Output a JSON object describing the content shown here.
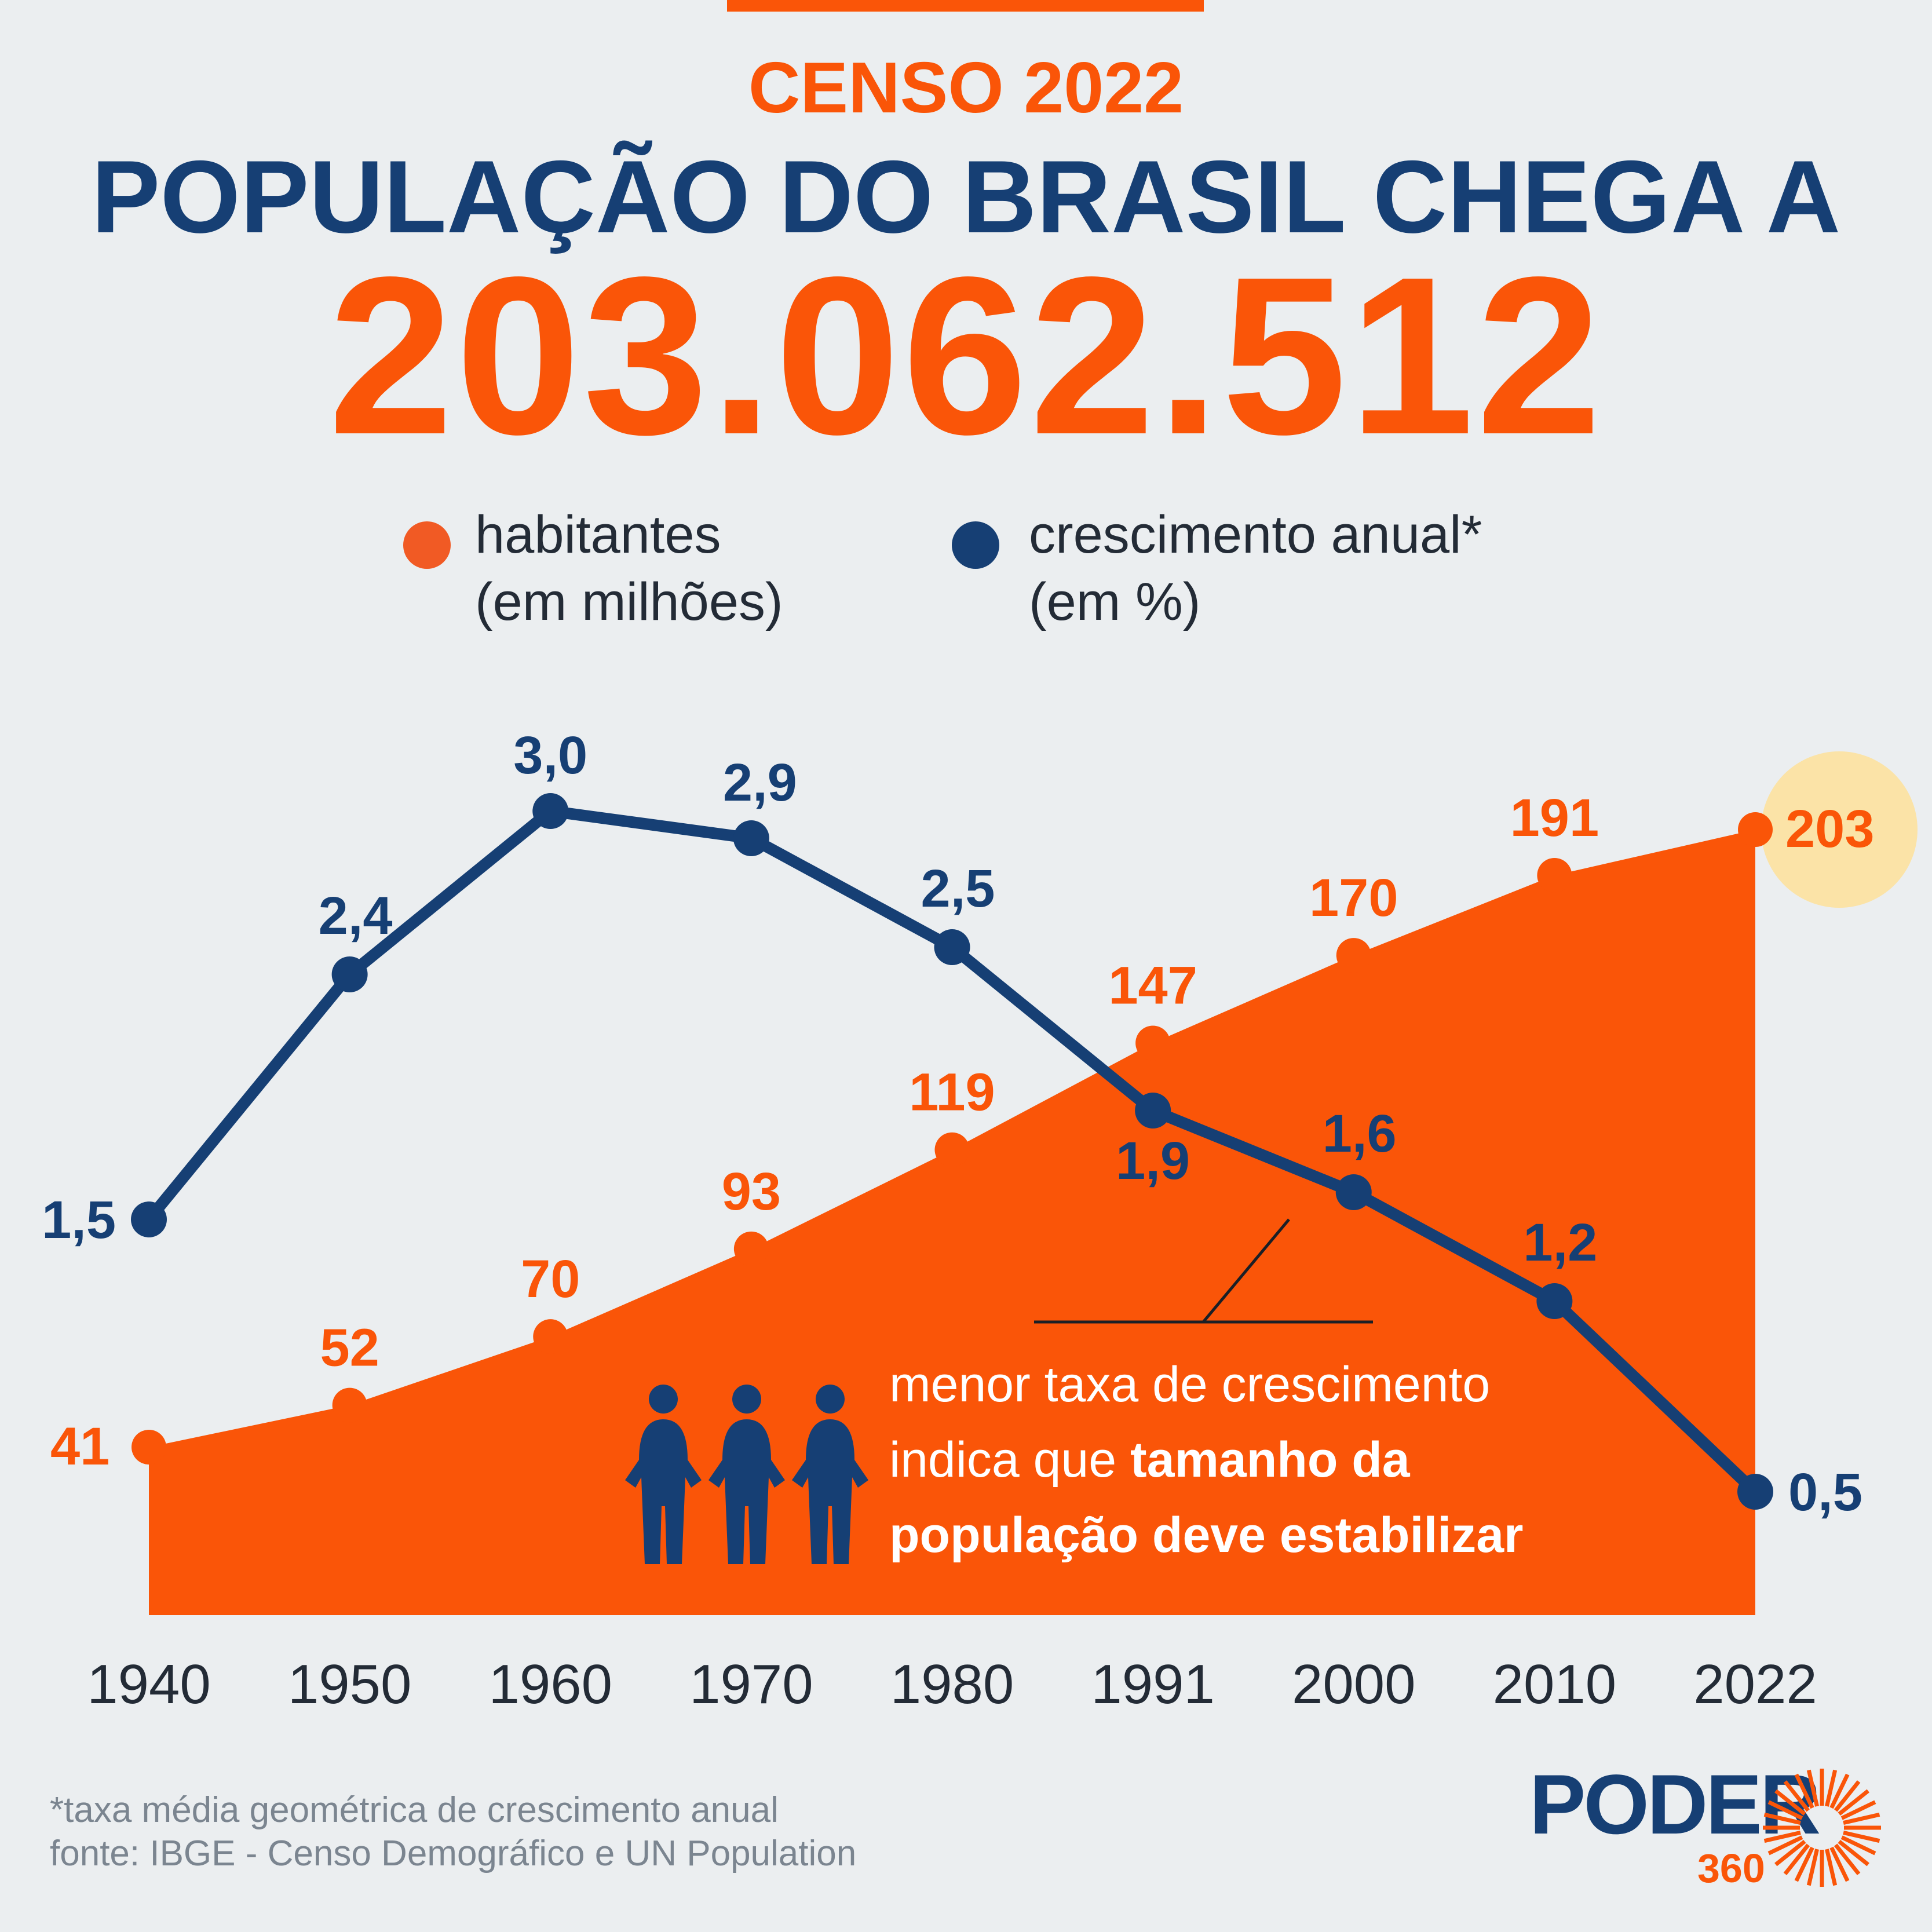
{
  "header": {
    "kicker": "CENSO 2022",
    "headline": "POPULAÇÃO DO BRASIL CHEGA A",
    "big_number": "203.062.512"
  },
  "legend": {
    "population": {
      "line1": "habitantes",
      "line2": "(em milhões)",
      "color": "#fa5508"
    },
    "growth": {
      "line1": "crescimento anual*",
      "line2": "(em %)",
      "color": "#163f74"
    }
  },
  "chart_data": {
    "type": "area",
    "categories": [
      "1940",
      "1950",
      "1960",
      "1970",
      "1980",
      "1991",
      "2000",
      "2010",
      "2022"
    ],
    "series": [
      {
        "name": "habitantes (em milhões)",
        "type": "area",
        "color": "#fa5508",
        "values": [
          41,
          52,
          70,
          93,
          119,
          147,
          170,
          191,
          203
        ],
        "labels": [
          "41",
          "52",
          "70",
          "93",
          "119",
          "147",
          "170",
          "191",
          "203"
        ]
      },
      {
        "name": "crescimento anual* (em %)",
        "type": "line",
        "color": "#163f74",
        "values": [
          1.5,
          2.4,
          3.0,
          2.9,
          2.5,
          1.9,
          1.6,
          1.2,
          0.5
        ],
        "labels": [
          "1,5",
          "2,4",
          "3,0",
          "2,9",
          "2,5",
          "1,9",
          "1,6",
          "1,2",
          "0,5"
        ]
      }
    ],
    "highlight": {
      "series": 0,
      "index": 8,
      "color": "#fbe3a7"
    },
    "grid": false,
    "legend_position": "top"
  },
  "annotation": {
    "line1": "menor taxa de crescimento",
    "line2_plain": "indica que ",
    "line2_bold": "tamanho da",
    "line3_bold": "população deve estabilizar",
    "icon": "people-icon"
  },
  "footer": {
    "footnote": "*taxa média geométrica de crescimento anual",
    "source": "fonte: IBGE - Censo Demográfico e UN Population"
  },
  "logo": {
    "word": "PODER",
    "number": "360",
    "icon": "sun-icon"
  }
}
